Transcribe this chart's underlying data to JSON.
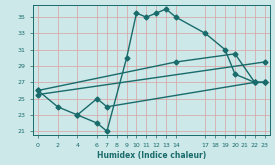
{
  "xlabel": "Humidex (Indice chaleur)",
  "bg_color": "#cce8e8",
  "grid_color": "#d9a0a0",
  "line_color": "#1a6b6b",
  "marker": "D",
  "markersize": 2.5,
  "linewidth": 1.0,
  "xlim": [
    -0.5,
    23.5
  ],
  "ylim": [
    20.5,
    36.5
  ],
  "xticks": [
    0,
    2,
    4,
    6,
    7,
    8,
    9,
    10,
    11,
    12,
    13,
    14,
    17,
    18,
    19,
    20,
    21,
    22,
    23
  ],
  "yticks": [
    21,
    23,
    25,
    27,
    29,
    31,
    33,
    35
  ],
  "series": [
    {
      "x": [
        4,
        6,
        7,
        9,
        10,
        11,
        12,
        13,
        14,
        17,
        19,
        20,
        22,
        23
      ],
      "y": [
        23,
        22,
        21,
        30,
        35.5,
        35,
        35.5,
        36,
        35,
        33,
        31,
        28,
        27,
        27
      ]
    },
    {
      "x": [
        0,
        2,
        4,
        6,
        7,
        22,
        23
      ],
      "y": [
        26,
        24,
        23,
        25,
        24,
        27,
        27
      ]
    },
    {
      "x": [
        0,
        14,
        20,
        22,
        23
      ],
      "y": [
        26,
        29.5,
        30.5,
        27,
        27
      ]
    },
    {
      "x": [
        0,
        23
      ],
      "y": [
        25.5,
        29.5
      ]
    }
  ]
}
